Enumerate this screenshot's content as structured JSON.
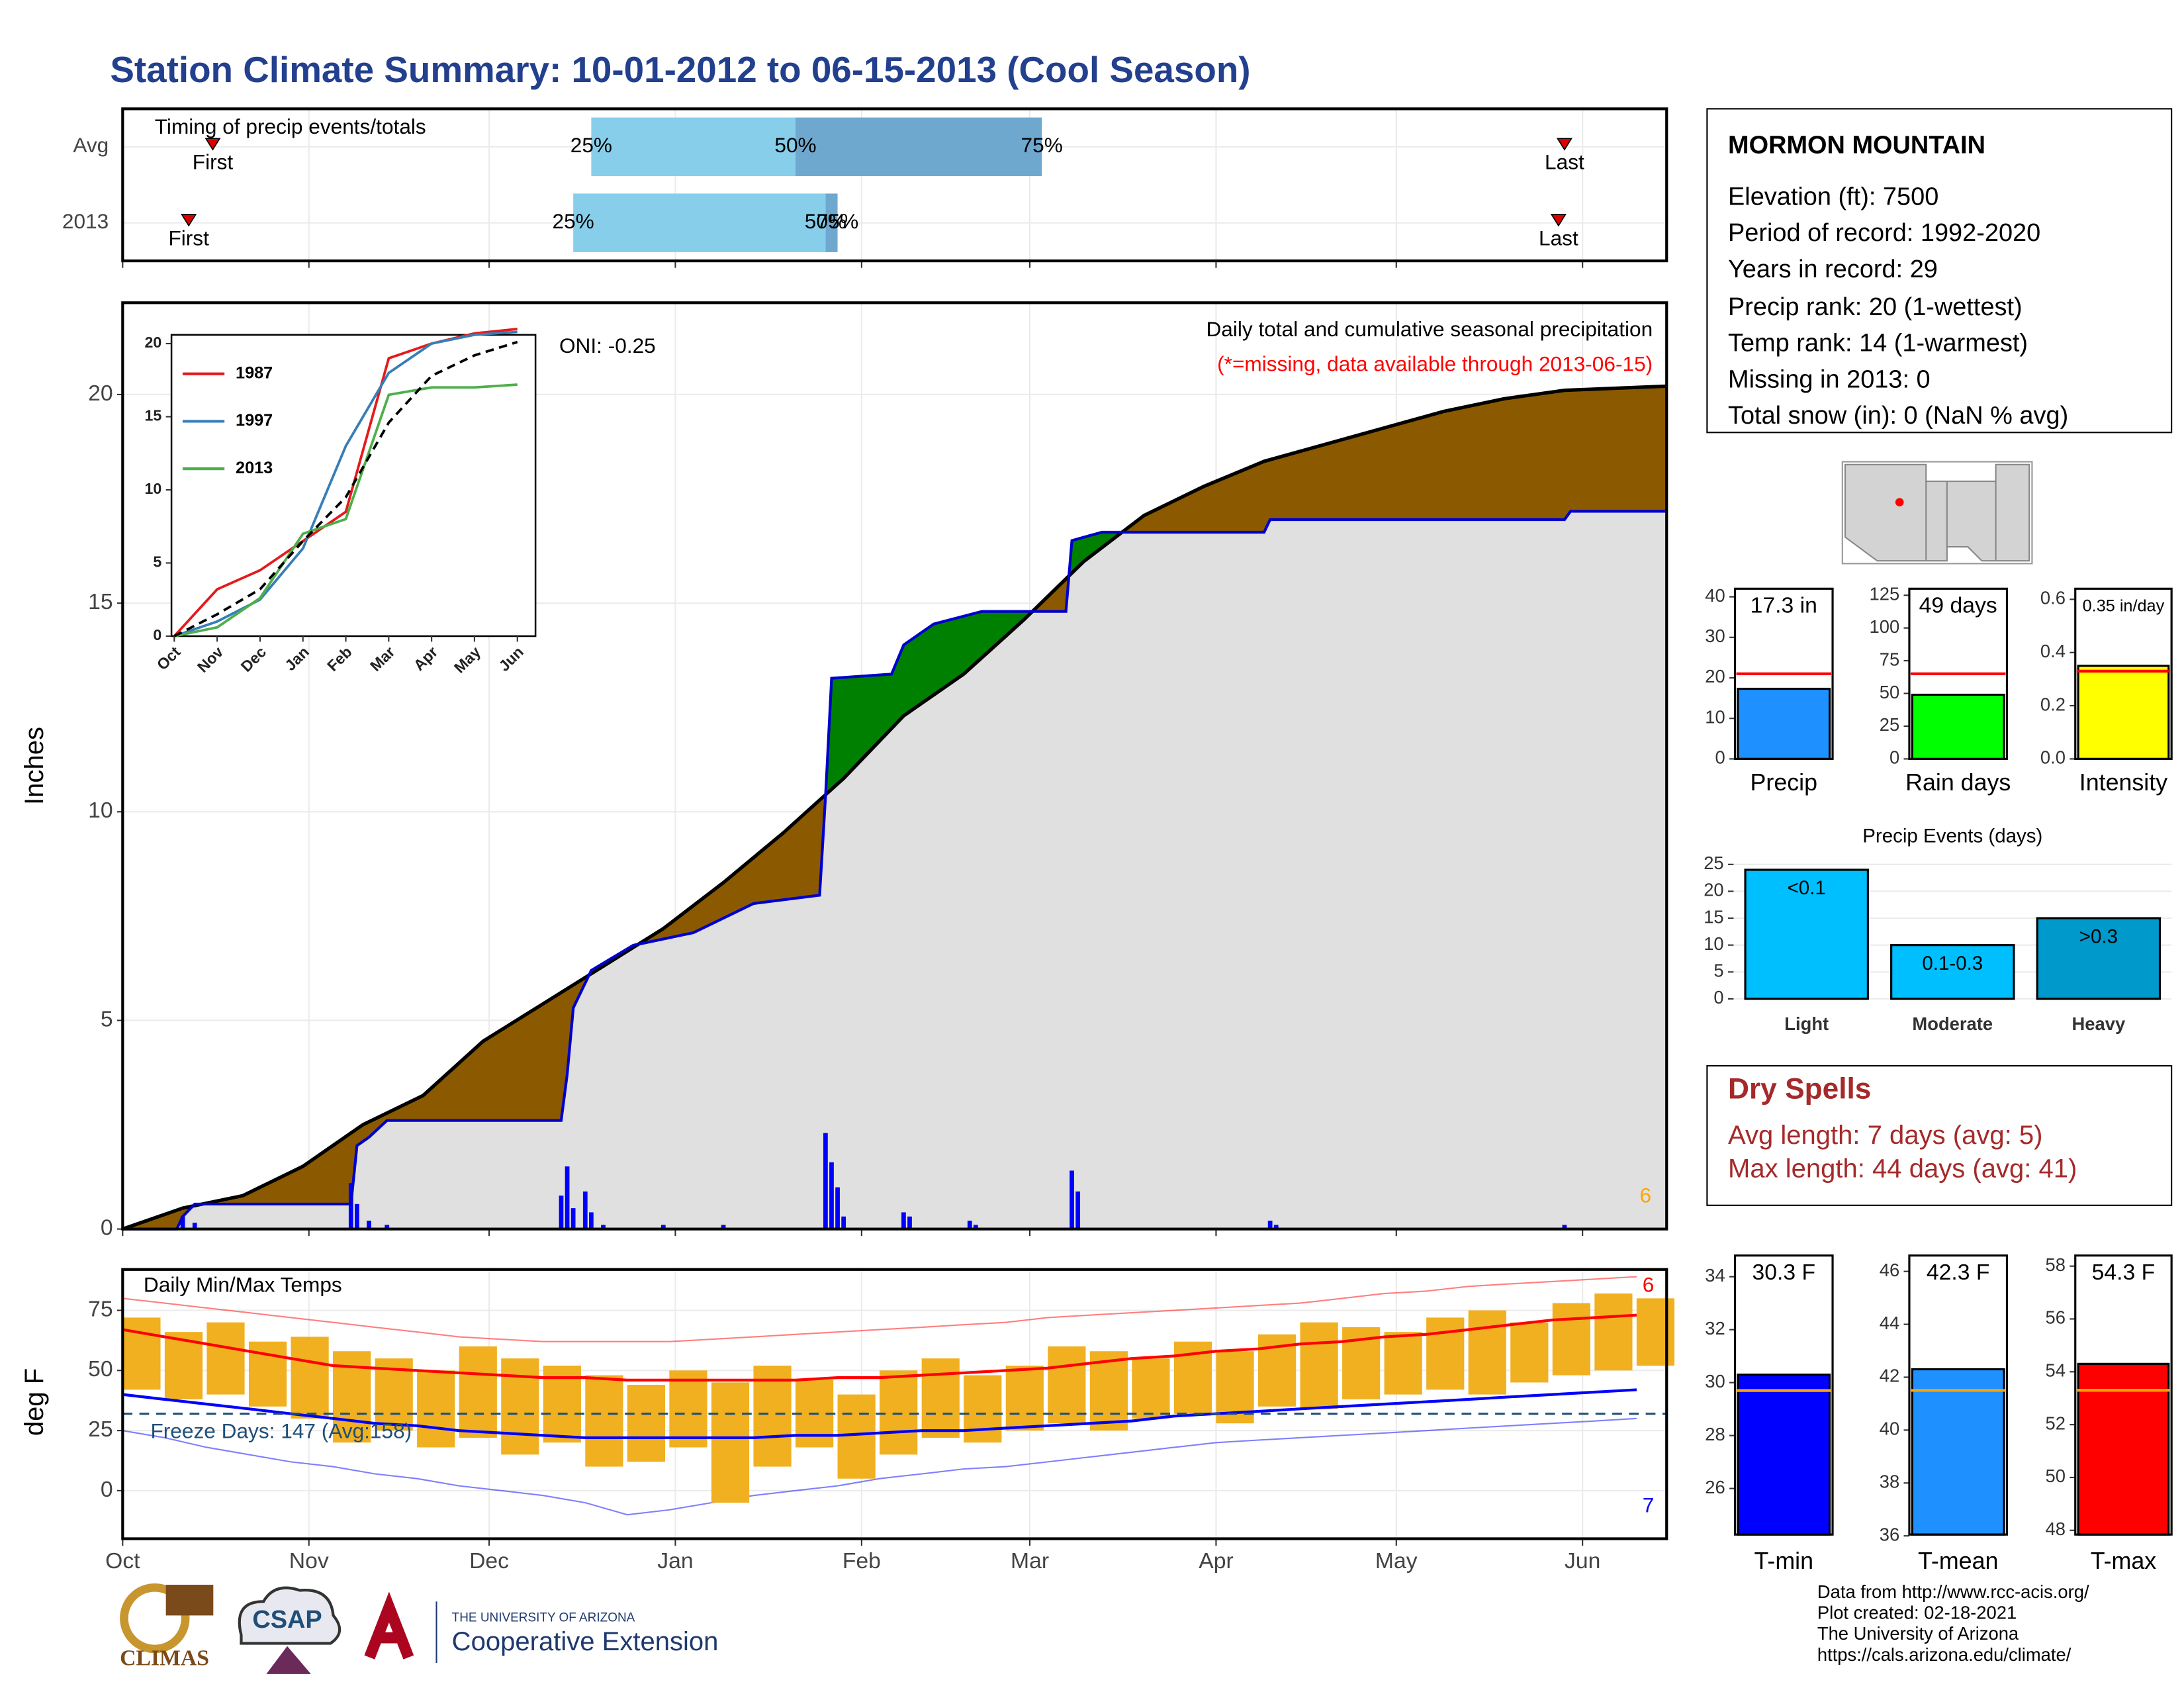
{
  "title": "Station Climate Summary: 10-01-2012 to 06-15-2013 (Cool Season)",
  "station": {
    "name": "MORMON MOUNTAIN",
    "lines": [
      "Elevation (ft): 7500",
      "Period of record: 1992-2020",
      "Years in record: 29",
      "Precip rank: 20 (1-wettest)",
      "Temp rank: 14 (1-warmest)",
      "Missing in 2013: 0",
      "Total snow (in): 0 (NaN % avg)"
    ]
  },
  "dry_spells": {
    "title": "Dry Spells",
    "lines": [
      "Avg length: 7 days (avg: 5)",
      "Max length: 44 days (avg: 41)"
    ]
  },
  "footer": [
    "Data from http://www.rcc-acis.org/",
    "Plot created: 02-18-2021",
    "The University of Arizona",
    "https://cals.arizona.edu/climate/"
  ],
  "logos": [
    "CLIMAS",
    "CSAP",
    "THE UNIVERSITY OF ARIZONA",
    "Cooperative Extension"
  ],
  "chart_data": [
    {
      "type": "timing",
      "title": "Timing of precip events/totals",
      "xlim": [
        0,
        257
      ],
      "rows": [
        {
          "name": "Avg",
          "first": 15,
          "quantiles": [
            78,
            112,
            153
          ],
          "last": 240
        },
        {
          "name": "2013",
          "first": 11,
          "quantiles": [
            75,
            117,
            119
          ],
          "last": 239
        }
      ],
      "quantile_labels": [
        "25%",
        "50%",
        "75%"
      ],
      "first_label": "First",
      "last_label": "Last",
      "colors": [
        "#87ceeb",
        "#6fa8cf"
      ],
      "marker_color": "#dd0000"
    },
    {
      "type": "area",
      "title": "Daily total and cumulative seasonal precipitation",
      "subtitle": "(*=missing, data available through 2013-06-15)",
      "annotation": "ONI: -0.25",
      "corner": 6,
      "ylabel": "Inches",
      "xlim": [
        0,
        257
      ],
      "ylim": [
        0,
        22.2
      ],
      "yticks": [
        0,
        5,
        10,
        15,
        20
      ],
      "grid": true,
      "average": {
        "color": "#000000",
        "x": [
          0,
          10,
          20,
          30,
          40,
          50,
          60,
          70,
          80,
          90,
          100,
          110,
          120,
          130,
          140,
          150,
          160,
          170,
          180,
          190,
          200,
          210,
          220,
          230,
          240,
          257
        ],
        "values": [
          0,
          0.5,
          0.8,
          1.5,
          2.5,
          3.2,
          4.5,
          5.4,
          6.3,
          7.2,
          8.3,
          9.5,
          10.8,
          12.3,
          13.3,
          14.6,
          16,
          17.1,
          17.8,
          18.4,
          18.8,
          19.2,
          19.6,
          19.9,
          20.1,
          20.2
        ]
      },
      "current": {
        "color": "#0000cd",
        "x": [
          0,
          9,
          10,
          12,
          38,
          39,
          41,
          44,
          73,
          74,
          75,
          78,
          85,
          95,
          105,
          116,
          117,
          118,
          128,
          130,
          135,
          143,
          157,
          158,
          163,
          190,
          191,
          240,
          241,
          257
        ],
        "values": [
          0,
          0,
          0.3,
          0.6,
          0.6,
          2.0,
          2.2,
          2.6,
          2.6,
          3.7,
          5.3,
          6.2,
          6.8,
          7.1,
          7.8,
          8.0,
          10.4,
          13.2,
          13.3,
          14.0,
          14.5,
          14.8,
          14.8,
          16.5,
          16.7,
          16.7,
          17.0,
          17.0,
          17.2,
          17.2
        ]
      },
      "daily": {
        "color": "#0000ff",
        "x": [
          10,
          12,
          38,
          39,
          41,
          44,
          73,
          74,
          75,
          77,
          78,
          80,
          90,
          100,
          117,
          118,
          119,
          120,
          130,
          131,
          141,
          142,
          158,
          159,
          191,
          192,
          240
        ],
        "values": [
          0.3,
          0.15,
          1.1,
          0.6,
          0.2,
          0.1,
          0.8,
          1.5,
          0.5,
          0.9,
          0.4,
          0.1,
          0.1,
          0.1,
          2.3,
          1.6,
          1.0,
          0.3,
          0.4,
          0.3,
          0.2,
          0.1,
          1.4,
          0.9,
          0.2,
          0.1,
          0.1
        ]
      },
      "above_color": "#008000",
      "below_color": "#8b5a00",
      "base_color": "#e0e0e0"
    },
    {
      "type": "line",
      "categories": [
        "Oct",
        "Nov",
        "Dec",
        "Jan",
        "Feb",
        "Mar",
        "Apr",
        "May",
        "Jun"
      ],
      "ylim": [
        0,
        20.6
      ],
      "yticks": [
        0,
        5,
        10,
        15,
        20
      ],
      "series": [
        {
          "name": "1987",
          "color": "#e41a1c",
          "values": [
            0,
            3.2,
            4.5,
            6.5,
            8.5,
            19,
            20,
            20.7,
            21
          ]
        },
        {
          "name": "1997",
          "color": "#377eb8",
          "values": [
            0,
            1,
            2.5,
            6,
            13,
            18,
            20,
            20.6,
            20.8
          ]
        },
        {
          "name": "2013",
          "color": "#4daf4a",
          "values": [
            0,
            0.6,
            2.6,
            7,
            8,
            16.5,
            17,
            17,
            17.2
          ]
        },
        {
          "color": "#000000",
          "dash": true,
          "values": [
            0,
            1.5,
            3.2,
            6.5,
            9.5,
            14.6,
            17.8,
            19.2,
            20.1
          ]
        }
      ]
    },
    {
      "type": "temperature",
      "title": "Daily Min/Max Temps",
      "ylabel": "deg F",
      "annotation": "Freeze Days: 147 (Avg:158)",
      "corner_high": 6,
      "corner_low": 7,
      "freeze_threshold": 32,
      "xlim": [
        0,
        257
      ],
      "xticks": [
        {
          "value": 0,
          "label": "Oct"
        },
        {
          "value": 31,
          "label": "Nov"
        },
        {
          "value": 61,
          "label": "Dec"
        },
        {
          "value": 92,
          "label": "Jan"
        },
        {
          "value": 123,
          "label": "Feb"
        },
        {
          "value": 151,
          "label": "Mar"
        },
        {
          "value": 182,
          "label": "Apr"
        },
        {
          "value": 212,
          "label": "May"
        },
        {
          "value": 243,
          "label": "Jun"
        }
      ],
      "ylim": [
        -20,
        92
      ],
      "yticks": [
        0,
        25,
        50,
        75
      ],
      "grid": true,
      "x": [
        0,
        7,
        14,
        21,
        28,
        35,
        42,
        49,
        56,
        63,
        70,
        77,
        84,
        91,
        98,
        105,
        112,
        119,
        126,
        133,
        140,
        147,
        154,
        161,
        168,
        175,
        182,
        189,
        196,
        203,
        210,
        217,
        224,
        231,
        238,
        245,
        252
      ],
      "high": [
        72,
        66,
        70,
        62,
        64,
        58,
        55,
        50,
        60,
        55,
        52,
        48,
        44,
        50,
        45,
        52,
        46,
        40,
        50,
        55,
        48,
        52,
        60,
        58,
        55,
        62,
        58,
        65,
        70,
        68,
        66,
        72,
        75,
        70,
        78,
        82,
        80
      ],
      "low": [
        42,
        38,
        40,
        35,
        30,
        20,
        25,
        18,
        22,
        15,
        20,
        10,
        12,
        18,
        -5,
        10,
        18,
        5,
        15,
        22,
        20,
        25,
        28,
        25,
        30,
        32,
        28,
        35,
        34,
        38,
        40,
        42,
        40,
        45,
        48,
        50,
        52
      ],
      "avg_max": [
        67,
        64,
        61,
        58,
        55,
        52,
        51,
        50,
        49,
        48,
        47,
        47,
        46,
        46,
        46,
        46,
        46,
        47,
        47,
        48,
        49,
        50,
        51,
        53,
        55,
        56,
        58,
        59,
        61,
        62,
        64,
        65,
        67,
        69,
        71,
        72,
        73
      ],
      "avg_min": [
        40,
        38,
        36,
        34,
        32,
        30,
        28,
        27,
        25,
        24,
        23,
        22,
        22,
        22,
        22,
        22,
        23,
        23,
        24,
        25,
        25,
        26,
        27,
        28,
        29,
        31,
        32,
        33,
        34,
        35,
        36,
        37,
        38,
        39,
        40,
        41,
        42
      ],
      "record_max": [
        80,
        78,
        76,
        74,
        72,
        70,
        68,
        66,
        64,
        63,
        62,
        62,
        62,
        62,
        63,
        64,
        65,
        66,
        67,
        68,
        69,
        70,
        72,
        73,
        74,
        75,
        76,
        77,
        78,
        80,
        82,
        83,
        85,
        86,
        87,
        88,
        89
      ],
      "record_min": [
        25,
        22,
        18,
        15,
        12,
        10,
        7,
        5,
        2,
        0,
        -2,
        -5,
        -10,
        -8,
        -5,
        -2,
        0,
        2,
        5,
        7,
        9,
        10,
        12,
        14,
        16,
        18,
        20,
        21,
        22,
        23,
        24,
        25,
        26,
        27,
        28,
        29,
        30
      ],
      "bar_color": "#f0b020",
      "max_color": "#ff0000",
      "min_color": "#0000ff",
      "freeze_color": "#1f4e79"
    },
    {
      "type": "bar",
      "categories": [
        "Precip"
      ],
      "values": [
        17.3
      ],
      "value_labels": [
        "17.3 in"
      ],
      "average": 21,
      "average_color": "#ff0000",
      "color": "#1e90ff",
      "ylim": [
        0,
        42
      ],
      "yticks": [
        0,
        10,
        20,
        30,
        40
      ]
    },
    {
      "type": "bar",
      "categories": [
        "Rain days"
      ],
      "values": [
        49
      ],
      "value_labels": [
        "49 days"
      ],
      "average": 65,
      "average_color": "#ff0000",
      "color": "#00ff00",
      "ylim": [
        0,
        130
      ],
      "yticks": [
        0,
        25,
        50,
        75,
        100,
        125
      ]
    },
    {
      "type": "bar",
      "categories": [
        "Intensity"
      ],
      "values": [
        0.35
      ],
      "value_labels": [
        "0.35 in/day"
      ],
      "average": 0.33,
      "average_color": "#ff0000",
      "color": "#ffff00",
      "ylim": [
        0,
        0.64
      ],
      "yticks": [
        {
          "value": 0,
          "label": "0.0"
        },
        {
          "value": 0.2,
          "label": "0.2"
        },
        {
          "value": 0.4,
          "label": "0.4"
        },
        {
          "value": 0.6,
          "label": "0.6"
        }
      ]
    },
    {
      "type": "bar",
      "title": "Precip Events (days)",
      "categories": [
        "Light",
        "Moderate",
        "Heavy"
      ],
      "values": [
        24,
        10,
        15
      ],
      "bin_labels": [
        "<0.1",
        "0.1-0.3",
        ">0.3"
      ],
      "colors": [
        "#00bfff",
        "#00bfff",
        "#0099cc"
      ],
      "ylim": [
        0,
        26.2
      ],
      "yticks": [
        0,
        5,
        10,
        15,
        20,
        25
      ],
      "grid": true
    },
    {
      "type": "bar",
      "categories": [
        "T-min"
      ],
      "values": [
        30.3
      ],
      "value_labels": [
        "30.3 F"
      ],
      "average": 29.7,
      "average_color": "#ffa500",
      "color": "#0000ff",
      "ylim": [
        24.26,
        34.8
      ],
      "yticks": [
        26,
        28,
        30,
        32,
        34
      ]
    },
    {
      "type": "bar",
      "categories": [
        "T-mean"
      ],
      "values": [
        42.3
      ],
      "value_labels": [
        "42.3 F"
      ],
      "average": 41.5,
      "average_color": "#ffa500",
      "color": "#1e90ff",
      "ylim": [
        36.05,
        46.6
      ],
      "yticks": [
        36,
        38,
        40,
        42,
        44,
        46
      ]
    },
    {
      "type": "bar",
      "categories": [
        "T-max"
      ],
      "values": [
        54.3
      ],
      "value_labels": [
        "54.3 F"
      ],
      "average": 53.3,
      "average_color": "#ffa500",
      "color": "#ff0000",
      "ylim": [
        47.84,
        58.4
      ],
      "yticks": [
        48,
        50,
        52,
        54,
        56,
        58
      ]
    }
  ]
}
